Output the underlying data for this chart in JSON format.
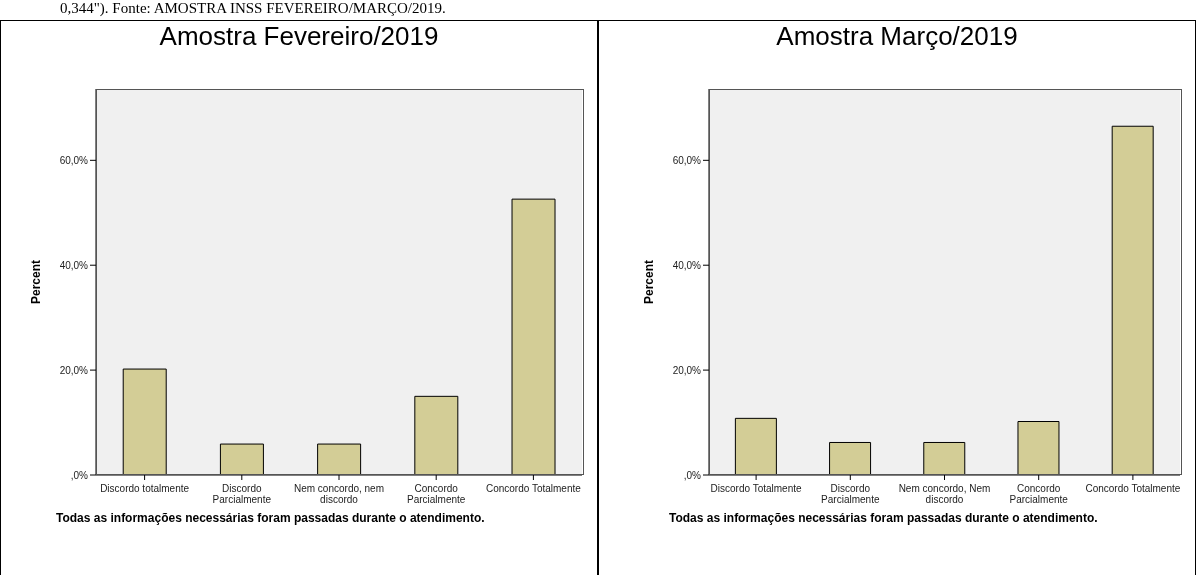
{
  "chart_data": [
    {
      "type": "bar",
      "title": "Amostra Fevereiro/2019",
      "xlabel": "Todas as informações necessárias foram passadas durante o atendimento.",
      "ylabel": "Percent",
      "annotations": [
        "0,344\"). Fonte: AMOSTRA INSS FEVEREIRO/MARÇO/2019."
      ],
      "categories": [
        "Discordo totalmente",
        "Discordo Parcialmente",
        "Nem concordo, nem discordo",
        "Concordo Parcialmente",
        "Concordo Totalmente"
      ],
      "values": [
        20.2,
        5.9,
        5.9,
        15.0,
        52.6
      ],
      "color": "#d3cd96",
      "ylim": [
        0,
        73.6
      ],
      "yticks": [
        {
          "value": 0,
          "label": ",0%"
        },
        {
          "value": 20,
          "label": "20,0%"
        },
        {
          "value": 40,
          "label": "40,0%"
        },
        {
          "value": 60,
          "label": "60,0%"
        }
      ]
    },
    {
      "type": "bar",
      "title": "Amostra Março/2019",
      "xlabel": "Todas as informações necessárias foram passadas durante o atendimento.",
      "ylabel": "Percent",
      "categories": [
        "Discordo Totalmente",
        "Discordo Parcialmente",
        "Nem concordo, Nem discordo",
        "Concordo Parcialmente",
        "Concordo Totalmente"
      ],
      "values": [
        10.8,
        6.2,
        6.2,
        10.2,
        66.5
      ],
      "color": "#d3cd96",
      "ylim": [
        0,
        73.6
      ],
      "yticks": [
        {
          "value": 0,
          "label": ",0%"
        },
        {
          "value": 20,
          "label": "20,0%"
        },
        {
          "value": 40,
          "label": "40,0%"
        },
        {
          "value": 60,
          "label": "60,0%"
        }
      ]
    }
  ]
}
